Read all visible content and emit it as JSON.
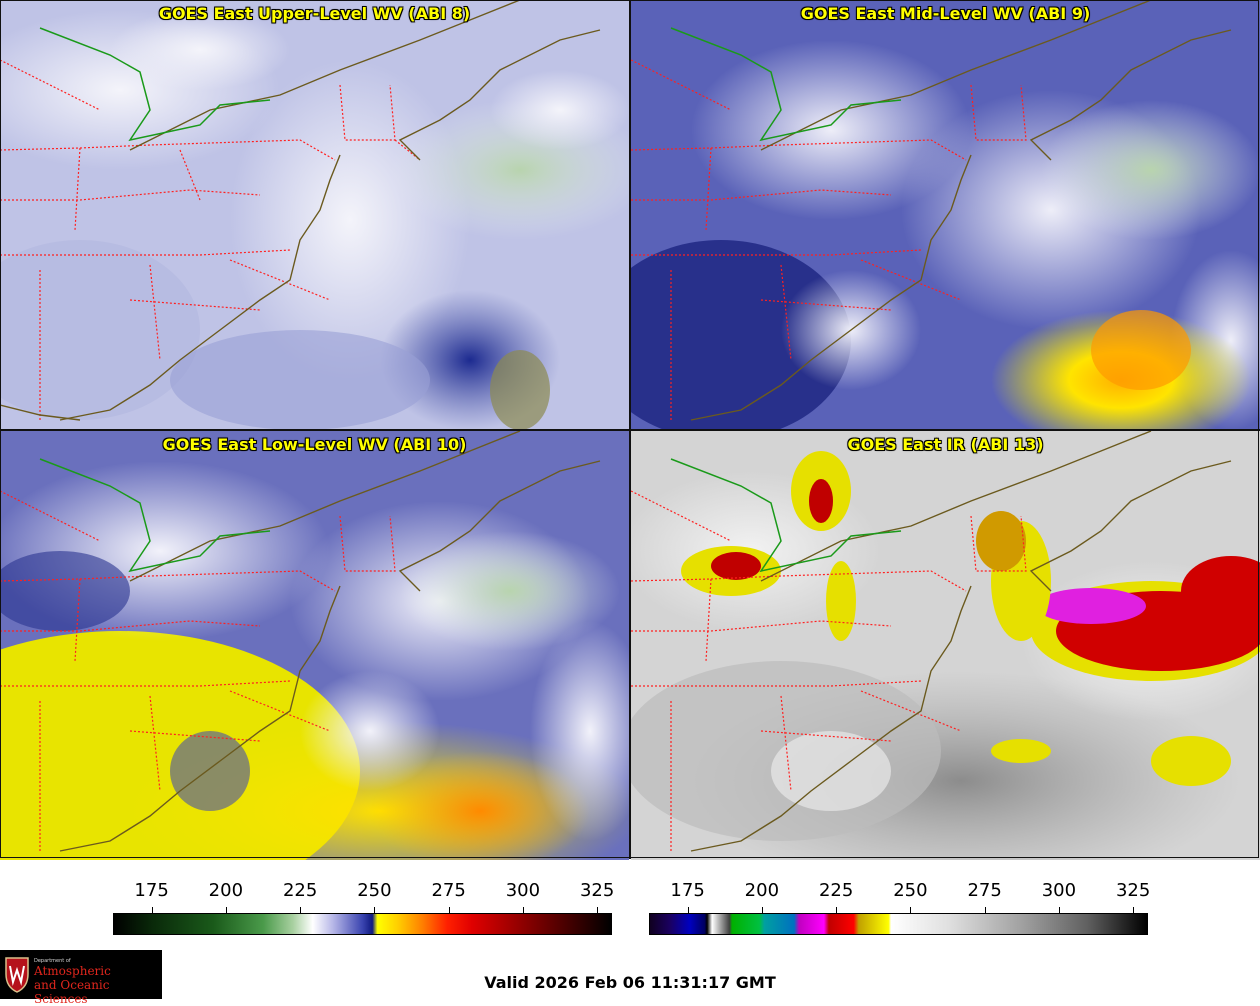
{
  "panels": {
    "upper": {
      "title": "GOES East Upper-Level WV (ABI 8)"
    },
    "mid": {
      "title": "GOES East Mid-Level WV (ABI 9)"
    },
    "low": {
      "title": "GOES East Low-Level WV (ABI 10)"
    },
    "ir": {
      "title": "GOES East IR (ABI 13)"
    }
  },
  "colorbars": {
    "wv": {
      "ticks": [
        "175",
        "200",
        "225",
        "250",
        "275",
        "300",
        "325"
      ],
      "range": [
        162,
        330
      ]
    },
    "ir": {
      "ticks": [
        "175",
        "200",
        "225",
        "250",
        "275",
        "300",
        "325"
      ],
      "range": [
        162,
        330
      ]
    }
  },
  "logo": {
    "department": "Department of",
    "line1": "Atmospheric",
    "line2": "and Oceanic Sciences",
    "icon": "uw-crest-icon"
  },
  "valid_time": "Valid 2026 Feb 06 11:31:17 GMT",
  "colors": {
    "state_borders": "#ff2020",
    "coastline": "#6b5a1e",
    "lake_line": "#1a9a1a",
    "title_text": "#ffff00"
  }
}
